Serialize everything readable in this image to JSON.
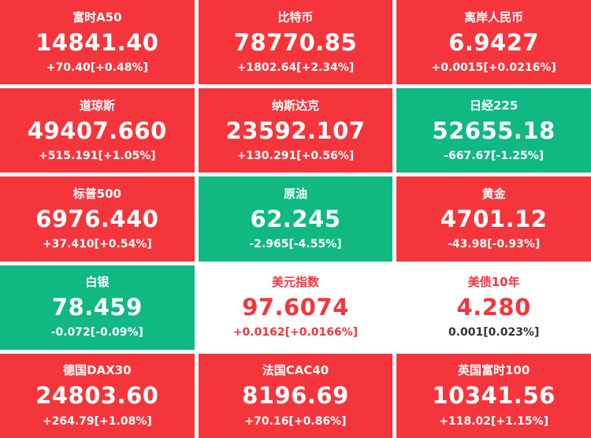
{
  "colors": {
    "red": "#f4363c",
    "green": "#10b981",
    "page_bg": "#ffffff",
    "tile_text": "#ffffff",
    "dark_text": "#333333"
  },
  "tiles": [
    {
      "name": "富时A50",
      "price": "14841.40",
      "change": "+70.40[+0.48%]",
      "style": "red"
    },
    {
      "name": "比特币",
      "price": "78770.85",
      "change": "+1802.64[+2.34%]",
      "style": "red"
    },
    {
      "name": "离岸人民币",
      "price": "6.9427",
      "change": "+0.0015[+0.0216%]",
      "style": "red"
    },
    {
      "name": "道琼斯",
      "price": "49407.660",
      "change": "+515.191[+1.05%]",
      "style": "red"
    },
    {
      "name": "纳斯达克",
      "price": "23592.107",
      "change": "+130.291[+0.56%]",
      "style": "red"
    },
    {
      "name": "日经225",
      "price": "52655.18",
      "change": "-667.67[-1.25%]",
      "style": "green"
    },
    {
      "name": "标普500",
      "price": "6976.440",
      "change": "+37.410[+0.54%]",
      "style": "red"
    },
    {
      "name": "原油",
      "price": "62.245",
      "change": "-2.965[-4.55%]",
      "style": "green"
    },
    {
      "name": "黄金",
      "price": "4701.12",
      "change": "-43.98[-0.93%]",
      "style": "red"
    },
    {
      "name": "白银",
      "price": "78.459",
      "change": "-0.072[-0.09%]",
      "style": "green"
    },
    {
      "name": "美元指数",
      "price": "97.6074",
      "change": "+0.0162[+0.0166%]",
      "style": "white"
    },
    {
      "name": "美债10年",
      "price": "4.280",
      "change": "0.001[0.023%]",
      "style": "white-dark"
    },
    {
      "name": "德国DAX30",
      "price": "24803.60",
      "change": "+264.79[+1.08%]",
      "style": "red"
    },
    {
      "name": "法国CAC40",
      "price": "8196.69",
      "change": "+70.16[+0.86%]",
      "style": "red"
    },
    {
      "name": "英国富时100",
      "price": "10341.56",
      "change": "+118.02[+1.15%]",
      "style": "red"
    }
  ]
}
